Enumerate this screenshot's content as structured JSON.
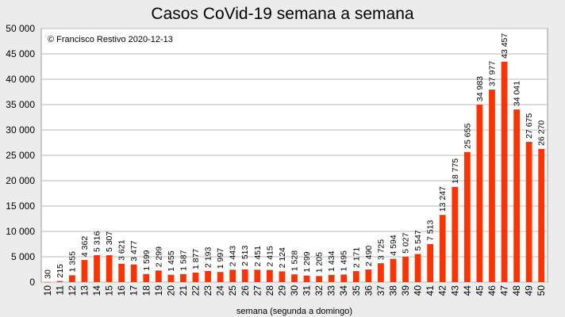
{
  "chart_data": {
    "type": "bar",
    "title": "Casos CoVid-19 semana a semana",
    "annotation": "© Francisco Restivo 2020-12-13",
    "xlabel": "semana (segunda a domingo)",
    "ylabel": "",
    "ylim": [
      0,
      50000
    ],
    "yticks": [
      0,
      5000,
      10000,
      15000,
      20000,
      25000,
      30000,
      35000,
      40000,
      45000,
      50000
    ],
    "ytick_labels": [
      "0",
      "5 000",
      "10 000",
      "15 000",
      "20 000",
      "25 000",
      "30 000",
      "35 000",
      "40 000",
      "45 000",
      "50 000"
    ],
    "grid": true,
    "bar_color": "#ff3300",
    "categories": [
      "10",
      "11",
      "12",
      "13",
      "14",
      "15",
      "16",
      "17",
      "18",
      "19",
      "20",
      "21",
      "22",
      "23",
      "24",
      "25",
      "26",
      "27",
      "28",
      "29",
      "30",
      "31",
      "32",
      "33",
      "34",
      "35",
      "36",
      "37",
      "38",
      "39",
      "40",
      "41",
      "42",
      "43",
      "44",
      "45",
      "46",
      "47",
      "48",
      "49",
      "50"
    ],
    "values": [
      30,
      215,
      1355,
      4362,
      5316,
      5307,
      3621,
      3477,
      1599,
      2299,
      1455,
      1587,
      1877,
      2193,
      1997,
      2443,
      2513,
      2451,
      2415,
      2124,
      1528,
      1299,
      1205,
      1434,
      1495,
      2171,
      2490,
      3725,
      4594,
      5027,
      5547,
      7513,
      13247,
      18775,
      25655,
      34983,
      37977,
      43457,
      34041,
      27675,
      26270
    ],
    "value_labels": [
      "30",
      "215",
      "1 355",
      "4 362",
      "5 316",
      "5 307",
      "3 621",
      "3 477",
      "1 599",
      "2 299",
      "1 455",
      "1 587",
      "1 877",
      "2 193",
      "1 997",
      "2 443",
      "2 513",
      "2 451",
      "2 415",
      "2 124",
      "1 528",
      "1 299",
      "1 205",
      "1 434",
      "1 495",
      "2 171",
      "2 490",
      "3 725",
      "4 594",
      "5 027",
      "5 547",
      "7 513",
      "13 247",
      "18 775",
      "25 655",
      "34 983",
      "37 977",
      "43 457",
      "34 041",
      "27 675",
      "26 270"
    ]
  }
}
